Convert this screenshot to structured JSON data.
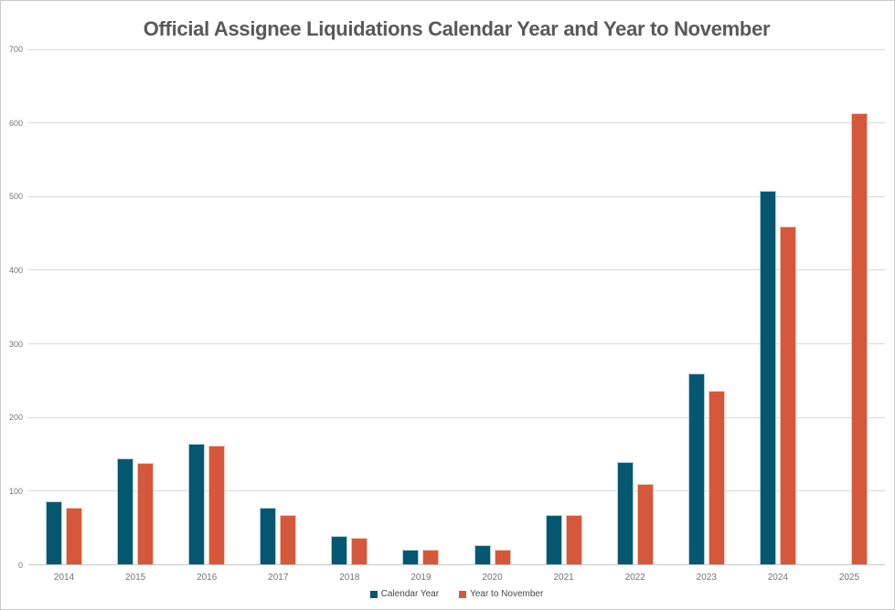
{
  "title": "Official Assignee Liquidations Calendar Year and Year to November",
  "chart_data": {
    "type": "bar",
    "title": "Official Assignee Liquidations Calendar Year and Year to November",
    "categories": [
      "2014",
      "2015",
      "2016",
      "2017",
      "2018",
      "2019",
      "2020",
      "2021",
      "2022",
      "2023",
      "2024",
      "2025"
    ],
    "series": [
      {
        "name": "Calendar Year",
        "color": "#04576F",
        "border_color": "#aecfdd",
        "values": [
          86,
          144,
          164,
          77,
          39,
          20,
          27,
          67,
          140,
          260,
          508,
          null
        ]
      },
      {
        "name": "Year to November",
        "color": "#D5583A",
        "border_color": "#f2c5b4",
        "values": [
          77,
          138,
          162,
          67,
          36,
          20,
          20,
          67,
          110,
          236,
          460,
          613
        ]
      }
    ],
    "xlabel": "",
    "ylabel": "",
    "ylim": [
      0,
      700
    ],
    "yticks": [
      0,
      100,
      200,
      300,
      400,
      500,
      600,
      700
    ],
    "grid": true,
    "legend_position": "bottom"
  },
  "colors": {
    "title_text": "#595959",
    "axis_text": "#737373",
    "gridline": "#d9d9d9",
    "background": "#ffffff"
  }
}
